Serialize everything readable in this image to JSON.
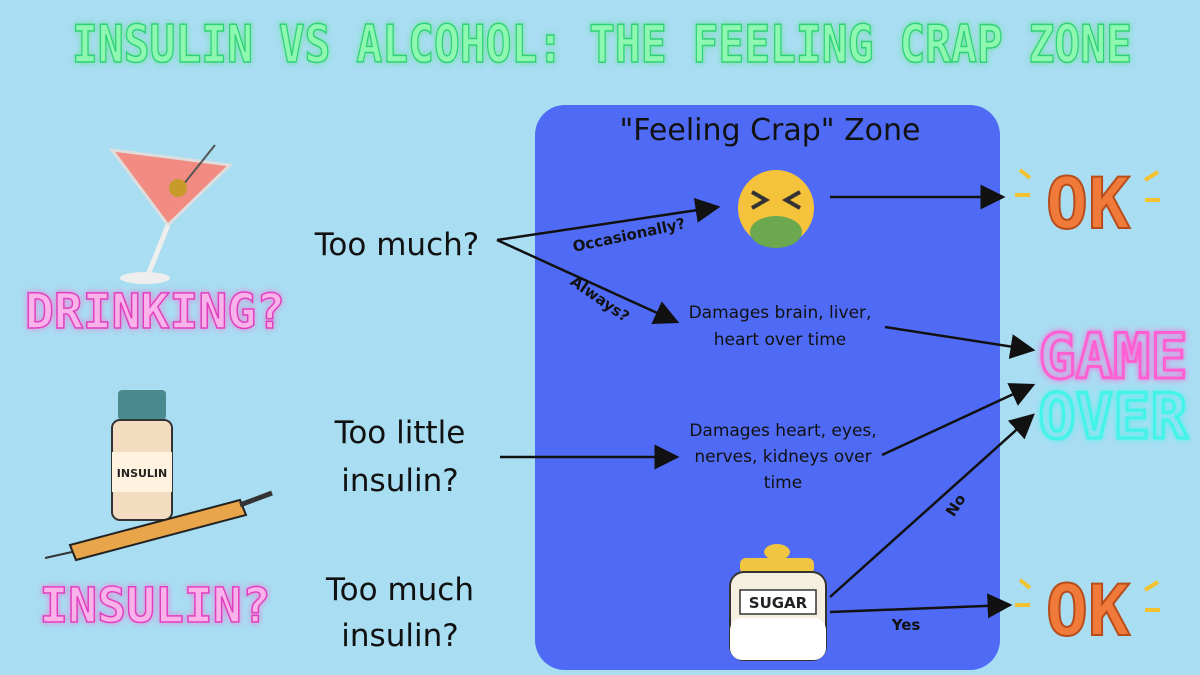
{
  "header": {
    "title": "INSULIN VS ALCOHOL: THE FEELING CRAP ZONE"
  },
  "zone": {
    "label": "\"Feeling Crap\" Zone"
  },
  "topics": [
    "DRINKING?",
    "INSULIN?"
  ],
  "icons": {
    "vial_label": "INSULIN",
    "jar_label": "SUGAR"
  },
  "questions": [
    {
      "lines": [
        "Too much?"
      ]
    },
    {
      "lines": [
        "Too little",
        "insulin?"
      ]
    },
    {
      "lines": [
        "Too much",
        "insulin?"
      ]
    }
  ],
  "edge_labels": [
    "Occasionally?",
    "Always?",
    "No",
    "Yes"
  ],
  "effects": [
    {
      "lines": [
        "Damages brain, liver,",
        "heart over time"
      ]
    },
    {
      "lines": [
        "Damages heart, eyes,",
        "nerves, kidneys over",
        "time"
      ]
    }
  ],
  "outcomes": {
    "ok": "OK",
    "game_over": [
      "GAME",
      "OVER"
    ]
  }
}
